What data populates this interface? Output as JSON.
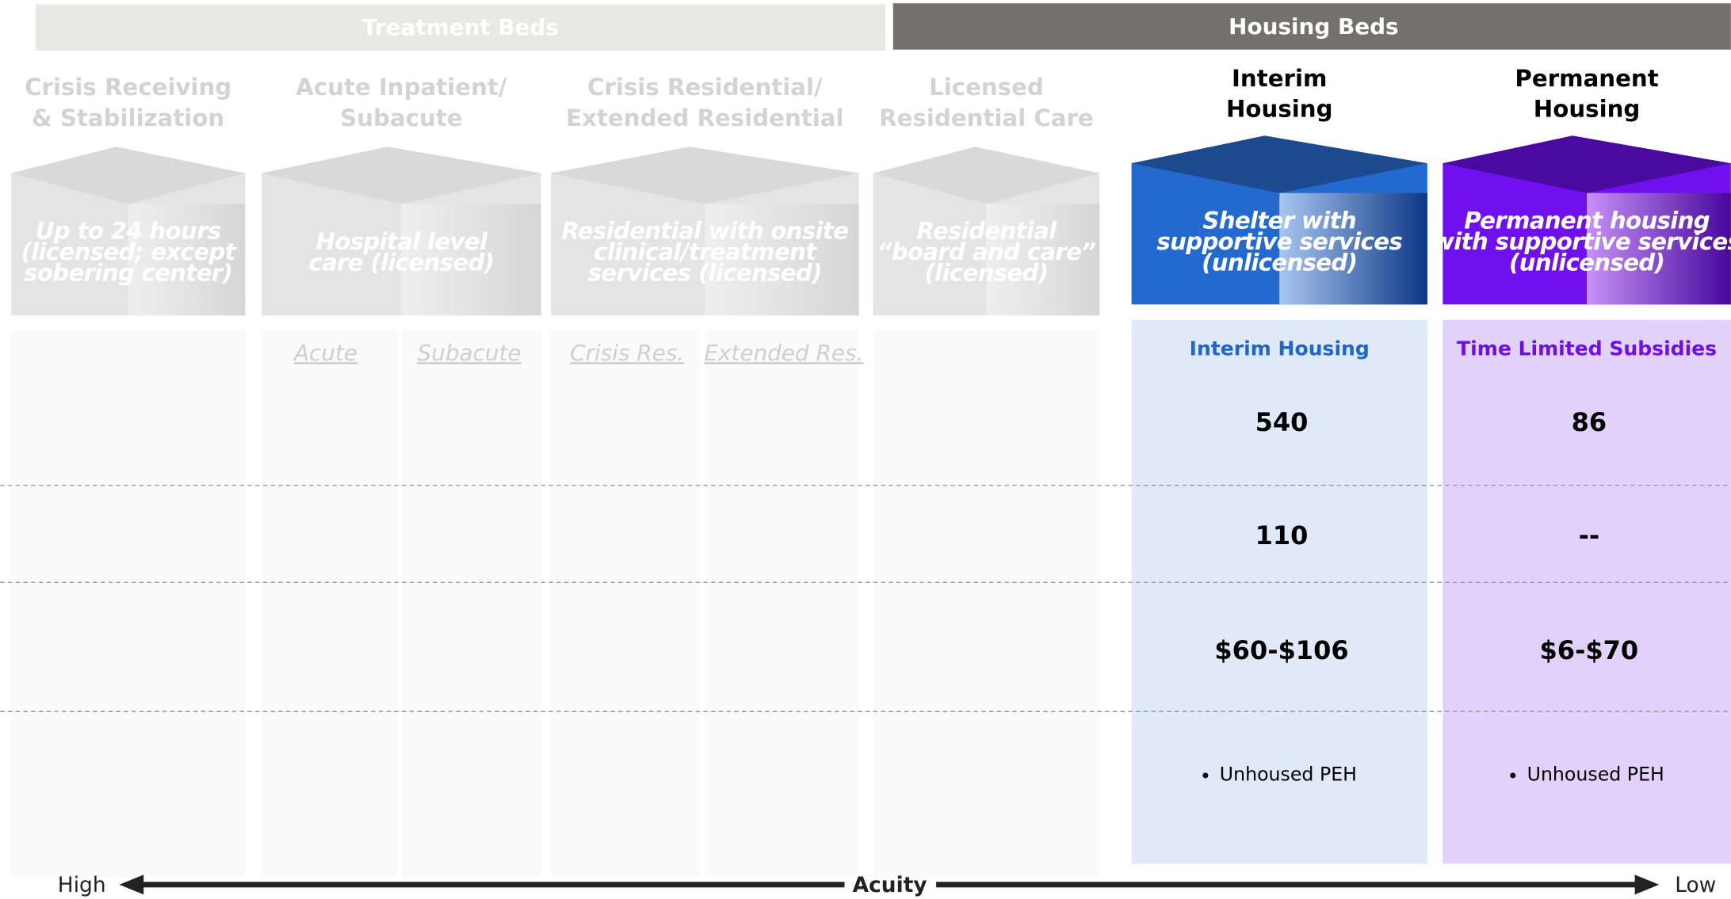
{
  "groups": [
    {
      "label": "Treatment Beds"
    },
    {
      "label": "Housing Beds"
    }
  ],
  "columns": [
    {
      "title": [
        "Crisis Receiving",
        "& Stabilization"
      ],
      "box": [
        "Up to 24 hours",
        "(licensed; except",
        "sobering center)"
      ]
    },
    {
      "title": [
        "Acute Inpatient/",
        "Subacute"
      ],
      "box": [
        "Hospital level",
        "care (licensed)"
      ],
      "subcolumns": [
        "Acute",
        "Subacute"
      ]
    },
    {
      "title": [
        "Crisis Residential/",
        "Extended Residential"
      ],
      "box": [
        "Residential with onsite",
        "clinical/treatment",
        "services (licensed)"
      ],
      "subcolumns": [
        "Crisis Res.",
        "Extended Res."
      ]
    },
    {
      "title": [
        "Licensed",
        "Residential Care"
      ],
      "box": [
        "Residential",
        "“board and care”",
        "(licensed)"
      ]
    },
    {
      "title": [
        "Interim",
        "Housing"
      ],
      "box": [
        "Shelter with",
        "supportive services",
        "(unlicensed)"
      ],
      "program": "Interim Housing",
      "cells": [
        "540",
        "110",
        "$60-$106",
        "Unhoused PEH"
      ]
    },
    {
      "title": [
        "Permanent",
        "Housing"
      ],
      "box": [
        "Permanent housing",
        "with supportive services",
        "(unlicensed)"
      ],
      "program": "Time Limited Subsidies",
      "cells": [
        "86",
        "--",
        "$6-$70",
        "Unhoused PEH"
      ]
    }
  ],
  "axis": {
    "left": "High",
    "center": "Acuity",
    "right": "Low"
  }
}
